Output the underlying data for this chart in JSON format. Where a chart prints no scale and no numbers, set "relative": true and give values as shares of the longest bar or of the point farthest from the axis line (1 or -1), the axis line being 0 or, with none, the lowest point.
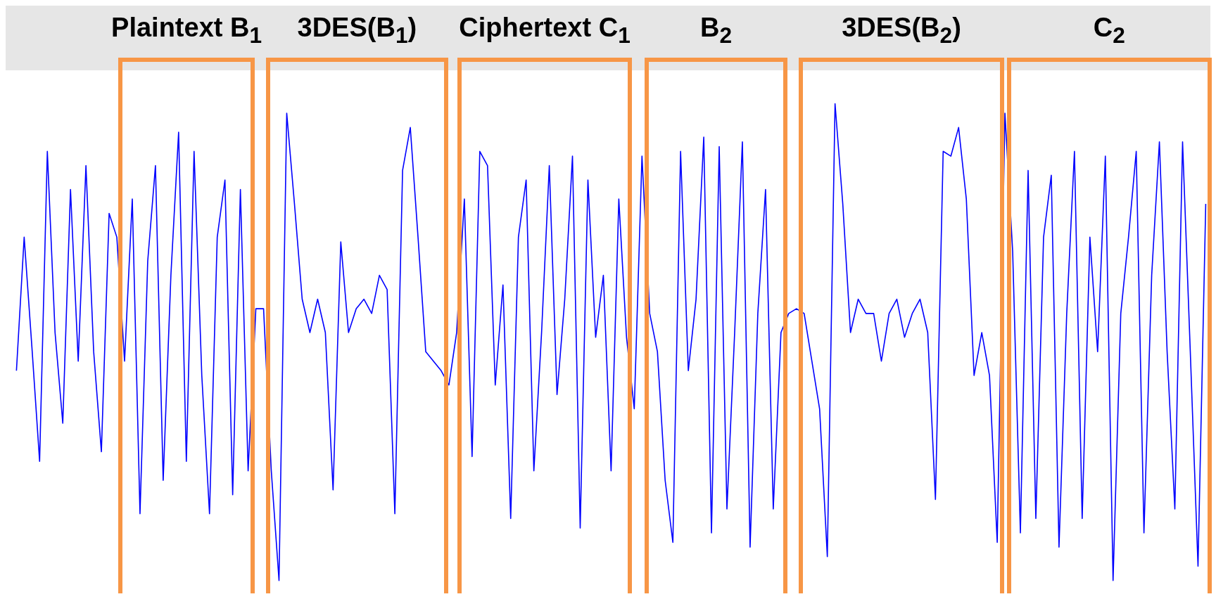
{
  "chart_data": {
    "type": "line",
    "relative": true,
    "categories": [
      null,
      null,
      null,
      null,
      null,
      null,
      null,
      null,
      null,
      null,
      null,
      null,
      null,
      null,
      null,
      null,
      null,
      null,
      null,
      null,
      null,
      null,
      null,
      null,
      null,
      null,
      null,
      null,
      null,
      null,
      null,
      null,
      null,
      null,
      null,
      null,
      null,
      null,
      null,
      null,
      null,
      null,
      null,
      null,
      null,
      null,
      null,
      null,
      null,
      null,
      null,
      null,
      null,
      null,
      null,
      null,
      null,
      null,
      null,
      null,
      null,
      null,
      null,
      null,
      null,
      null,
      null,
      null,
      null,
      null,
      null,
      null,
      null,
      null,
      null,
      null,
      null,
      null,
      null,
      null,
      null,
      null,
      null,
      null,
      null,
      null,
      null,
      null,
      null,
      null,
      null,
      null,
      null,
      null,
      null,
      null,
      null,
      null,
      null,
      null,
      null,
      null,
      null,
      null,
      null,
      null,
      null,
      null,
      null,
      null,
      null,
      null,
      null,
      null,
      null,
      null,
      null,
      null,
      null,
      null,
      null,
      null,
      null,
      null,
      null,
      null,
      null,
      null,
      null,
      null,
      null,
      null,
      null,
      null,
      null,
      null,
      null,
      null,
      null,
      null,
      null,
      null,
      null,
      null,
      null,
      null,
      null,
      null,
      null,
      null,
      null,
      null,
      null,
      null,
      null
    ],
    "series": [
      {
        "color": "#0000ff",
        "values": [
          0.44,
          0.72,
          0.49,
          0.25,
          0.9,
          0.52,
          0.33,
          0.82,
          0.46,
          0.87,
          0.48,
          0.27,
          0.77,
          0.72,
          0.46,
          0.8,
          0.14,
          0.67,
          0.87,
          0.21,
          0.64,
          0.94,
          0.25,
          0.9,
          0.43,
          0.14,
          0.72,
          0.84,
          0.18,
          0.82,
          0.23,
          0.57,
          0.57,
          0.23,
          0,
          0.98,
          0.79,
          0.59,
          0.52,
          0.59,
          0.52,
          0.19,
          0.71,
          0.52,
          0.57,
          0.59,
          0.56,
          0.64,
          0.61,
          0.14,
          0.86,
          0.95,
          0.72,
          0.48,
          0.46,
          0.44,
          0.41,
          0.52,
          0.8,
          0.26,
          0.9,
          0.87,
          0.41,
          0.62,
          0.13,
          0.72,
          0.84,
          0.23,
          0.52,
          0.87,
          0.39,
          0.59,
          0.89,
          0.11,
          0.84,
          0.51,
          0.64,
          0.23,
          0.8,
          0.51,
          0.36,
          0.89,
          0.56,
          0.48,
          0.21,
          0.08,
          0.9,
          0.44,
          0.59,
          0.93,
          0.1,
          0.91,
          0.15,
          0.52,
          0.92,
          0.07,
          0.56,
          0.82,
          0.15,
          0.52,
          0.56,
          0.57,
          0.56,
          0.46,
          0.36,
          0.05,
          1,
          0.79,
          0.52,
          0.59,
          0.56,
          0.56,
          0.46,
          0.56,
          0.59,
          0.51,
          0.56,
          0.59,
          0.52,
          0.17,
          0.9,
          0.89,
          0.95,
          0.8,
          0.43,
          0.52,
          0.43,
          0.08,
          0.98,
          0.69,
          0.1,
          0.86,
          0.13,
          0.72,
          0.85,
          0.07,
          0.56,
          0.9,
          0.13,
          0.72,
          0.48,
          0.89,
          0,
          0.56,
          0.72,
          0.9,
          0.1,
          0.64,
          0.92,
          0.48,
          0.15,
          0.92,
          0.48,
          0.03,
          0.79
        ]
      }
    ],
    "annotations": [
      "Plaintext B$_{1}$",
      "3DES(B$_{1}$)",
      "Ciphertext C$_{1}$",
      "B$_{2}$",
      "3DES(B$_{2}$)",
      "C$_{2}$"
    ]
  }
}
